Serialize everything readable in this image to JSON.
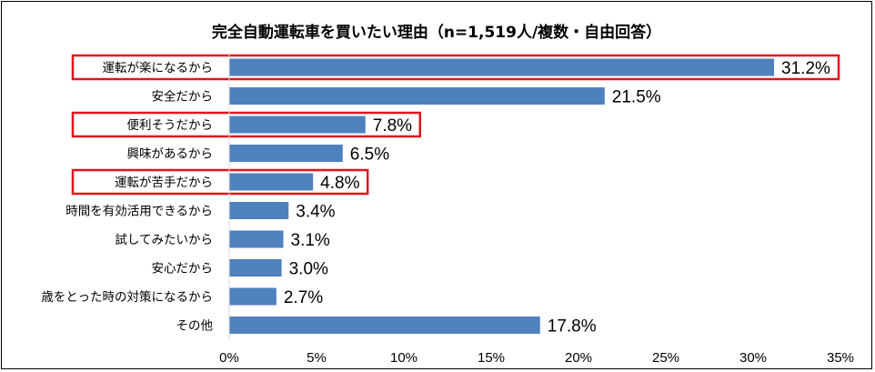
{
  "chart_data": {
    "type": "bar",
    "orientation": "horizontal",
    "title": "完全自動運転車を買いたい理由（n=1,519人/複数・自由回答）",
    "categories": [
      "運転が楽になるから",
      "安全だから",
      "便利そうだから",
      "興味があるから",
      "運転が苦手だから",
      "時間を有効活用できるから",
      "試してみたいから",
      "安心だから",
      "歳をとった時の対策になるから",
      "その他"
    ],
    "values": [
      31.2,
      21.5,
      7.8,
      6.5,
      4.8,
      3.4,
      3.1,
      3.0,
      2.7,
      17.8
    ],
    "value_labels": [
      "31.2%",
      "21.5%",
      "7.8%",
      "6.5%",
      "4.8%",
      "3.4%",
      "3.1%",
      "3.0%",
      "2.7%",
      "17.8%"
    ],
    "highlighted": [
      true,
      false,
      true,
      false,
      true,
      false,
      false,
      false,
      false,
      false
    ],
    "xlim": [
      0,
      35
    ],
    "x_ticks": [
      0,
      5,
      10,
      15,
      20,
      25,
      30,
      35
    ],
    "x_tick_labels": [
      "0%",
      "5%",
      "10%",
      "15%",
      "20%",
      "25%",
      "30%",
      "35%"
    ],
    "bar_color": "#4f81bd",
    "highlight_color": "#e0141e",
    "grid": false,
    "legend": "none"
  }
}
